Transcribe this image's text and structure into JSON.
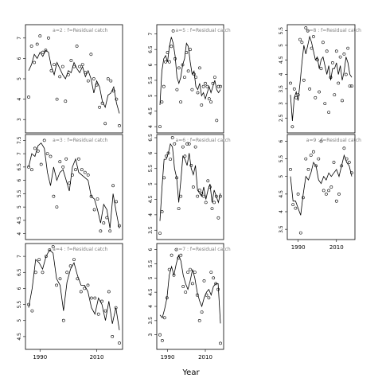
{
  "chart_data": {
    "type": "line",
    "xlabel": "Year",
    "x_ticks": [
      1990,
      2010
    ],
    "grid": false,
    "panels": [
      {
        "title": "a=2  :  f=Residual catch",
        "ylim": [
          2.5,
          7.5
        ],
        "yticks": [
          3,
          4,
          5,
          6,
          7
        ],
        "show_x_ticks": false,
        "fitted": [
          5.4,
          5.7,
          6.2,
          6.0,
          6.3,
          6.1,
          6.4,
          6.3,
          5.6,
          5.2,
          5.8,
          5.5,
          5.2,
          5.0,
          5.4,
          5.3,
          5.8,
          5.5,
          5.3,
          5.6,
          5.1,
          5.4,
          5.0,
          4.3,
          4.9,
          4.6,
          3.9,
          3.6,
          4.2,
          4.3,
          4.6,
          3.8,
          3.3
        ],
        "points": [
          4.1,
          6.6,
          5.8,
          6.7,
          7.1,
          6.3,
          6.4,
          7.0,
          5.4,
          5.7,
          4.0,
          5.1,
          5.6,
          3.9,
          5.2,
          5.9,
          5.6,
          6.6,
          5.6,
          5.7,
          5.3,
          4.9,
          6.2,
          5.0,
          4.7,
          3.6,
          3.8,
          2.8,
          5.0,
          4.9,
          4.4,
          4.0,
          2.7
        ]
      },
      {
        "title": "a=5  :  f=Residual catch",
        "ylim": [
          3.9,
          7.2
        ],
        "yticks": [
          4.0,
          4.5,
          5.0,
          5.5,
          6.0,
          6.5,
          7.0
        ],
        "show_x_ticks": false,
        "fitted": [
          4.7,
          5.8,
          6.2,
          6.3,
          6.1,
          6.6,
          6.9,
          6.7,
          6.3,
          5.6,
          5.4,
          5.6,
          6.0,
          6.2,
          6.7,
          6.6,
          6.1,
          5.7,
          5.8,
          5.3,
          5.2,
          5.4,
          5.0,
          5.1,
          4.9,
          5.1,
          5.3,
          5.1,
          5.3,
          5.5,
          5.2,
          5.1,
          5.2
        ],
        "points": [
          4.0,
          4.8,
          5.3,
          6.1,
          6.4,
          6.1,
          6.6,
          7.1,
          6.2,
          5.2,
          5.9,
          4.8,
          6.0,
          5.6,
          6.4,
          5.8,
          6.5,
          5.2,
          5.7,
          5.6,
          5.1,
          5.9,
          4.7,
          5.3,
          5.4,
          5.3,
          4.9,
          4.8,
          5.4,
          5.6,
          4.2,
          5.3,
          5.3
        ]
      },
      {
        "title": "a=8  :  f=Residual catch",
        "ylim": [
          2.1,
          5.6
        ],
        "yticks": [
          2.5,
          3.0,
          3.5,
          4.0,
          4.5,
          5.0,
          5.5
        ],
        "show_x_ticks": false,
        "fitted": [
          3.3,
          2.4,
          3.2,
          3.4,
          3.1,
          3.7,
          4.4,
          5.0,
          4.7,
          5.0,
          5.3,
          5.1,
          4.8,
          4.5,
          4.6,
          4.2,
          4.5,
          4.6,
          4.3,
          4.0,
          4.3,
          3.8,
          4.2,
          4.2,
          4.4,
          4.0,
          4.3,
          3.8,
          4.1,
          4.6,
          4.4,
          4.0,
          3.9
        ],
        "points": [
          3.7,
          2.2,
          3.5,
          3.2,
          3.3,
          5.2,
          5.1,
          3.8,
          5.6,
          5.5,
          3.5,
          4.9,
          5.3,
          3.2,
          4.5,
          3.4,
          4.2,
          5.1,
          3.0,
          4.8,
          2.7,
          3.9,
          4.4,
          3.3,
          4.8,
          3.7,
          4.6,
          3.1,
          4.7,
          4.0,
          4.9,
          3.6,
          3.6
        ]
      },
      {
        "title": "a=3  :  f=Residual catch",
        "ylim": [
          3.9,
          7.6
        ],
        "yticks": [
          4.0,
          4.5,
          5.0,
          5.5,
          6.0,
          6.5,
          7.0,
          7.5
        ],
        "show_x_ticks": false,
        "fitted": [
          6.5,
          7.0,
          6.9,
          7.3,
          7.4,
          7.2,
          6.3,
          5.8,
          6.5,
          6.0,
          6.3,
          6.4,
          6.0,
          5.6,
          6.5,
          6.8,
          6.3,
          6.2,
          6.1,
          6.0,
          5.4,
          5.3,
          4.9,
          4.4,
          5.1,
          4.9,
          4.2,
          5.5,
          4.8,
          4.2
        ],
        "points": [
          6.5,
          6.4,
          7.2,
          7.1,
          6.6,
          7.5,
          7.0,
          6.9,
          5.4,
          5.0,
          6.7,
          6.5,
          6.8,
          5.9,
          6.2,
          6.4,
          6.8,
          6.4,
          6.3,
          6.2,
          5.4,
          4.9,
          5.3,
          4.1,
          4.4,
          4.6,
          4.1,
          5.8,
          5.2,
          4.3
        ]
      },
      {
        "title": "a=6  :  f=Residual catch",
        "ylim": [
          3.3,
          6.5
        ],
        "yticks": [
          3.5,
          4.0,
          4.5,
          5.0,
          5.5,
          6.0,
          6.5
        ],
        "show_x_ticks": false,
        "fitted": [
          3.8,
          4.9,
          5.8,
          5.8,
          6.0,
          6.3,
          6.2,
          5.5,
          5.2,
          4.4,
          5.1,
          5.9,
          5.8,
          5.6,
          6.0,
          5.5,
          5.3,
          5.6,
          4.8,
          4.7,
          4.6,
          4.9,
          4.5,
          4.8,
          5.0,
          4.4,
          4.8,
          4.6,
          4.4,
          4.7
        ],
        "points": [
          3.4,
          4.1,
          5.2,
          5.9,
          6.0,
          5.8,
          6.5,
          6.3,
          5.2,
          4.2,
          4.6,
          6.2,
          5.9,
          6.3,
          6.3,
          5.6,
          4.9,
          6.2,
          4.6,
          4.8,
          4.7,
          4.6,
          4.4,
          5.1,
          4.9,
          4.2,
          4.4,
          4.6,
          3.9,
          4.6
        ]
      },
      {
        "title": "a=9  :  f=Residual catch",
        "ylim": [
          3.3,
          6.1
        ],
        "yticks": [
          3.5,
          4.0,
          4.5,
          5.0,
          5.5,
          6.0
        ],
        "show_x_ticks": true,
        "fitted": [
          5.0,
          4.3,
          4.3,
          4.1,
          3.9,
          4.5,
          5.0,
          4.9,
          5.1,
          5.4,
          5.3,
          4.9,
          4.8,
          5.0,
          4.9,
          5.1,
          5.0,
          5.1,
          5.2,
          5.0,
          5.3,
          5.6,
          5.4,
          5.3,
          5.0
        ],
        "points": [
          5.2,
          4.2,
          4.1,
          4.5,
          3.4,
          4.4,
          5.5,
          5.2,
          5.6,
          5.7,
          5.3,
          5.5,
          6.0,
          4.6,
          4.5,
          4.6,
          4.7,
          5.4,
          4.3,
          4.5,
          5.3,
          5.8,
          5.5,
          5.4,
          5.1
        ]
      },
      {
        "title": "a=4  :  f=Residual catch",
        "ylim": [
          4.2,
          7.3
        ],
        "yticks": [
          4.5,
          5.0,
          5.5,
          6.0,
          6.5,
          7.0
        ],
        "show_x_ticks": true,
        "fitted": [
          5.4,
          6.0,
          6.9,
          6.8,
          6.6,
          7.0,
          7.2,
          7.1,
          6.3,
          6.1,
          5.3,
          6.2,
          6.6,
          6.8,
          6.4,
          6.1,
          6.1,
          5.9,
          5.4,
          5.2,
          5.7,
          5.5,
          5.0,
          5.6,
          4.9,
          5.4,
          4.7
        ],
        "points": [
          5.5,
          5.3,
          6.5,
          6.9,
          6.5,
          7.0,
          7.2,
          7.3,
          6.1,
          6.3,
          5.0,
          6.5,
          6.7,
          6.9,
          6.3,
          5.9,
          6.0,
          6.1,
          5.7,
          5.7,
          5.2,
          5.6,
          5.3,
          5.9,
          4.5,
          5.4,
          4.3
        ]
      },
      {
        "title": "a=7  :  f=Residual catch",
        "ylim": [
          2.6,
          6.1
        ],
        "yticks": [
          3.0,
          3.5,
          4.0,
          4.5,
          5.0,
          5.5,
          6.0
        ],
        "show_x_ticks": true,
        "fitted": [
          3.7,
          3.6,
          3.9,
          4.3,
          5.1,
          5.4,
          5.1,
          5.5,
          5.8,
          5.6,
          5.1,
          4.8,
          4.6,
          4.9,
          5.3,
          5.0,
          4.5,
          4.2,
          4.0,
          4.3,
          4.5,
          4.6,
          4.4,
          4.7,
          4.8,
          4.8,
          3.4
        ],
        "points": [
          3.0,
          2.8,
          3.6,
          4.3,
          5.3,
          5.8,
          5.1,
          6.0,
          5.7,
          5.8,
          4.7,
          4.5,
          5.2,
          5.3,
          4.8,
          5.2,
          4.4,
          3.5,
          3.8,
          4.9,
          4.4,
          4.3,
          5.2,
          5.0,
          4.8,
          4.6,
          2.7
        ]
      }
    ]
  }
}
